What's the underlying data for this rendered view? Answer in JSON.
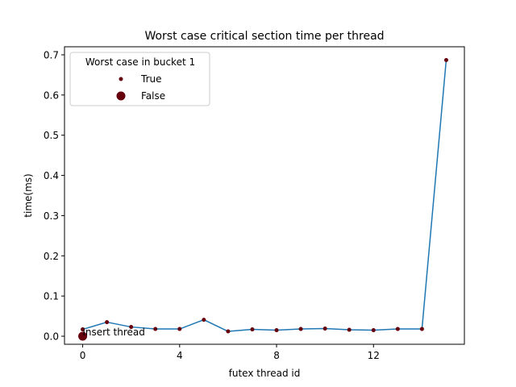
{
  "chart_data": {
    "type": "line",
    "title": "Worst case critical section time per thread",
    "xlabel": "futex thread id",
    "ylabel": "time(ms)",
    "xlim": [
      -0.75,
      15.75
    ],
    "ylim": [
      -0.02,
      0.72
    ],
    "xticks": [
      0,
      4,
      8,
      12
    ],
    "yticks": [
      0.0,
      0.1,
      0.2,
      0.3,
      0.4,
      0.5,
      0.6,
      0.7
    ],
    "ytick_labels": [
      "0.0",
      "0.1",
      "0.2",
      "0.3",
      "0.4",
      "0.5",
      "0.6",
      "0.7"
    ],
    "grid": false,
    "line_color": "#1f77b4",
    "marker_color": "#67000d",
    "series": [
      {
        "x": [
          0,
          1,
          2,
          3,
          4,
          5,
          6,
          7,
          8,
          9,
          10,
          11,
          12,
          13,
          14,
          15
        ],
        "y": [
          0.017,
          0.035,
          0.023,
          0.018,
          0.018,
          0.041,
          0.012,
          0.017,
          0.015,
          0.018,
          0.019,
          0.016,
          0.015,
          0.018,
          0.018,
          0.687
        ]
      }
    ],
    "insert_point": {
      "x": 0,
      "y": 0.0,
      "label": "insert thread"
    },
    "legend": {
      "title": "Worst case in bucket 1",
      "placement": "top-left",
      "entries": [
        {
          "label": "True",
          "marker": "small"
        },
        {
          "label": "False",
          "marker": "large"
        }
      ]
    }
  }
}
